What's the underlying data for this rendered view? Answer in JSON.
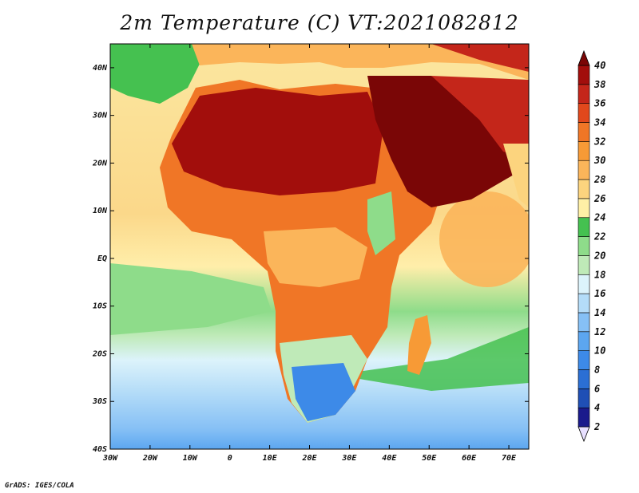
{
  "title": "2m Temperature (C) VT:2021082812",
  "credit": "GrADS: IGES/COLA",
  "map": {
    "lat_labels": [
      "40N",
      "30N",
      "20N",
      "10N",
      "EQ",
      "10S",
      "20S",
      "30S",
      "40S"
    ],
    "lon_labels": [
      "30W",
      "20W",
      "10W",
      "0",
      "10E",
      "20E",
      "30E",
      "40E",
      "50E",
      "60E",
      "70E"
    ],
    "lat_range": [
      -40,
      45
    ],
    "lon_range": [
      -30,
      75
    ]
  },
  "colorbar": {
    "labels": [
      "2",
      "4",
      "6",
      "8",
      "10",
      "12",
      "14",
      "16",
      "18",
      "20",
      "22",
      "24",
      "26",
      "28",
      "30",
      "32",
      "34",
      "36",
      "38",
      "40"
    ],
    "colors": [
      "#e8e0ff",
      "#1a1a8c",
      "#1f4fb5",
      "#2b6fd4",
      "#3d8ae8",
      "#5ca6f0",
      "#86c0f5",
      "#b4dcf8",
      "#dcf3fb",
      "#bfeab8",
      "#8edc8a",
      "#45c150",
      "#fff0a6",
      "#fcd47e",
      "#fbb55a",
      "#f79a36",
      "#f07626",
      "#e1481c",
      "#c4261a",
      "#a20e0c",
      "#7a0606"
    ]
  }
}
